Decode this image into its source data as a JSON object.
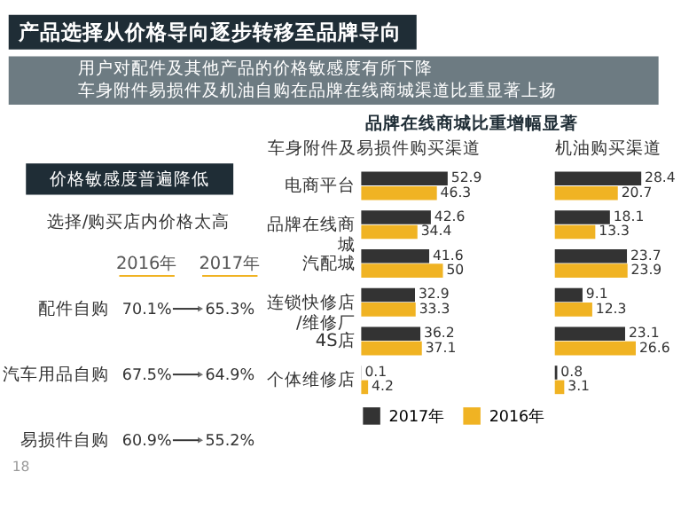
{
  "chart_data": [
    {
      "type": "other",
      "title": "产品选择从价格导向逐步转移至品牌导向",
      "annotations": [
        "用户对配件及其他产品的价格敏感度有所下降",
        "车身附件易损件及机油自购在品牌在线商城渠道比重显著上扬"
      ]
    },
    {
      "type": "other",
      "title": "价格敏感度普遍降低",
      "annotations": [
        "选择/购买店内价格太高",
        "18"
      ],
      "categories": [
        "配件自购",
        "汽车用品自购",
        "易损件自购"
      ],
      "series": [
        {
          "name": "2016年",
          "values": [
            70.1,
            67.5,
            60.9
          ],
          "value_labels": [
            "70.1%",
            "67.5%",
            "60.9%"
          ]
        },
        {
          "name": "2017年",
          "values": [
            65.3,
            64.9,
            55.2
          ],
          "value_labels": [
            "65.3%",
            "64.9%",
            "55.2%"
          ]
        }
      ]
    },
    {
      "type": "bar",
      "orientation": "horizontal",
      "title": "品牌在线商城比重增幅显著",
      "subtitle": "车身附件及易损件购买渠道",
      "categories": [
        "电商平台",
        "品牌在线商城",
        "汽配城",
        "连锁快修店/维修厂",
        "4S店",
        "个体维修店"
      ],
      "data_labels": true,
      "legend": "bottom",
      "grid": false,
      "series": [
        {
          "name": "2017年",
          "color": "#333333",
          "values": [
            52.9,
            42.6,
            41.6,
            32.9,
            36.2,
            0.1
          ]
        },
        {
          "name": "2016年",
          "color": "#f0b323",
          "values": [
            46.3,
            34.4,
            50.0,
            33.3,
            37.1,
            4.2
          ]
        }
      ]
    },
    {
      "type": "bar",
      "orientation": "horizontal",
      "subtitle": "机油购买渠道",
      "categories": [
        "电商平台",
        "品牌在线商城",
        "汽配城",
        "连锁快修店/维修厂",
        "4S店",
        "个体维修店"
      ],
      "data_labels": true,
      "grid": false,
      "tick_labels": false,
      "series": [
        {
          "color": "#333333",
          "values": [
            28.4,
            18.1,
            23.7,
            9.1,
            23.1,
            0.8
          ]
        },
        {
          "color": "#f0b323",
          "values": [
            20.7,
            13.3,
            23.9,
            12.3,
            26.6,
            3.1
          ]
        }
      ]
    }
  ]
}
